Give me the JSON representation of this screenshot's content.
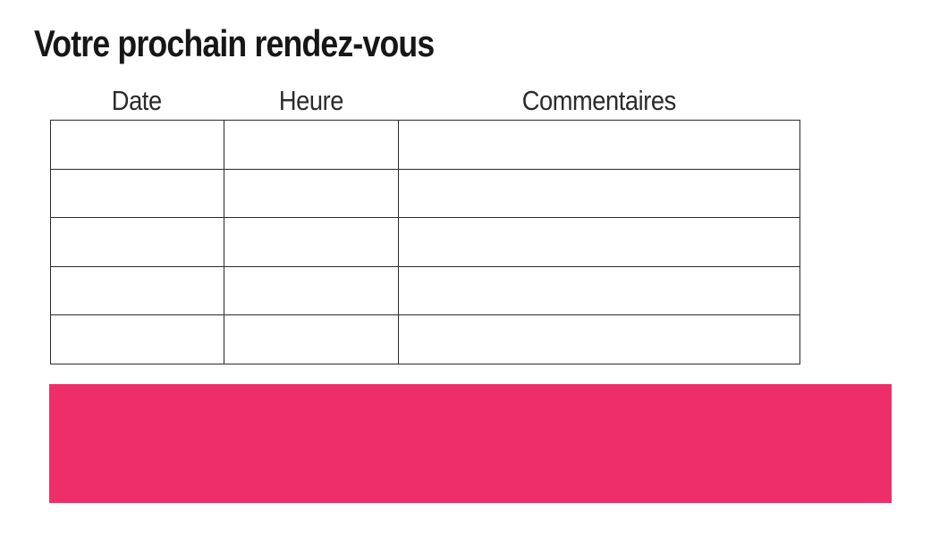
{
  "page": {
    "title": "Votre prochain rendez-vous",
    "background_color": "#ffffff"
  },
  "appointments_table": {
    "headers": [
      {
        "label": "Date"
      },
      {
        "label": "Heure"
      },
      {
        "label": "Commentaires"
      }
    ],
    "rows": [
      [
        "",
        "",
        ""
      ],
      [
        "",
        "",
        ""
      ],
      [
        "",
        "",
        ""
      ],
      [
        "",
        "",
        ""
      ],
      [
        "",
        "",
        ""
      ]
    ],
    "border_color": "#2a2a2a"
  },
  "banner": {
    "text": "",
    "color": "#ED2E68"
  },
  "colors": {
    "title_text": "#171717",
    "header_text": "#2b2b2b",
    "accent_pink": "#ED2E68"
  }
}
